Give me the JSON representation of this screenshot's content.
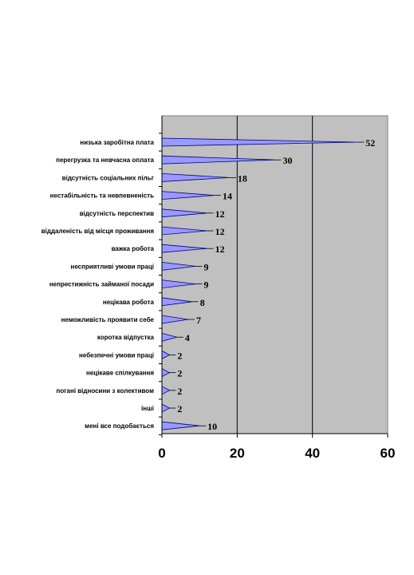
{
  "chart_data": {
    "type": "bar",
    "orientation": "horizontal",
    "title": "",
    "xlabel": "",
    "ylabel": "",
    "xlim": [
      0,
      60
    ],
    "x_ticks": [
      "0",
      "20",
      "40",
      "60"
    ],
    "grid": "vertical-major",
    "legend": "none",
    "colors": {
      "plot_background": "#c0c0c0",
      "bar_fill": "#9999ff",
      "bar_stroke": "#000080",
      "axis": "#000000"
    },
    "categories": [
      "низька заробітна плата",
      "перегрузка та невчасна оплата",
      "відсутність соціальних пільг",
      "нестабільність та невпевненість",
      "відсутність перспектив",
      "віддаленість від місця проживання",
      "важка робота",
      "несприятливі умови праці",
      "непрестижність займаної посади",
      "нецікава робота",
      "неможливість проявити себе",
      "коротка відпустка",
      "небезпечні умови праці",
      "нецікаве спілкування",
      "погані відносини з колективом",
      "інші",
      "мені все подобається"
    ],
    "values": [
      52,
      30,
      18,
      14,
      12,
      12,
      12,
      9,
      9,
      8,
      7,
      4,
      2,
      2,
      2,
      2,
      10
    ]
  }
}
